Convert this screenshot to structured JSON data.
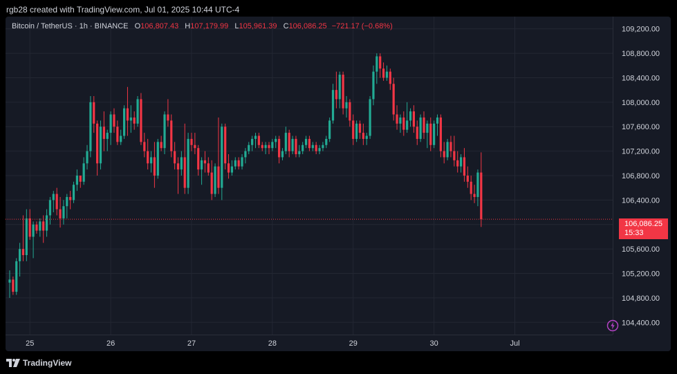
{
  "caption": "rgb28 created with TradingView.com, Jul 01, 2025 10:44 UTC-4",
  "legend": {
    "symbol": "Bitcoin / TetherUS · 1h · BINANCE",
    "o_label": "O",
    "open": "106,807.43",
    "h_label": "H",
    "high": "107,179.99",
    "l_label": "L",
    "low": "105,961.39",
    "c_label": "C",
    "close": "106,086.25",
    "change": "−721.17 (−0.68%)"
  },
  "price_tag": {
    "price": "106,086.25",
    "countdown": "15:33"
  },
  "footer": {
    "brand": "TradingView"
  },
  "icons": {
    "alert": "bolt-icon",
    "logo": "tradingview-logo-icon"
  },
  "colors": {
    "up": "#22ab94",
    "down": "#f23645",
    "background": "#161a25",
    "grid": "#232733",
    "text": "#d1d4dc"
  },
  "chart_data": {
    "type": "candlestick",
    "symbol": "BTCUSDT",
    "interval": "1h",
    "ylim": [
      104200,
      109400
    ],
    "y_ticks": [
      "104,400.00",
      "104,800.00",
      "105,200.00",
      "105,600.00",
      "106,000.00",
      "106,400.00",
      "106,800.00",
      "107,200.00",
      "107,600.00",
      "108,000.00",
      "108,400.00",
      "108,800.00",
      "109,200.00"
    ],
    "y_tick_values": [
      104400,
      104800,
      105200,
      105600,
      106000,
      106400,
      106800,
      107200,
      107600,
      108000,
      108400,
      108800,
      109200
    ],
    "x_ticks": [
      "25",
      "26",
      "27",
      "28",
      "29",
      "30",
      "Jul"
    ],
    "x_tick_hours": [
      6,
      30,
      54,
      78,
      102,
      126,
      150
    ],
    "last_price": 106086.25,
    "candles": [
      [
        105050,
        105250,
        104800,
        105100
      ],
      [
        105100,
        105150,
        104850,
        104900
      ],
      [
        104900,
        105450,
        104850,
        105400
      ],
      [
        105400,
        105700,
        105150,
        105600
      ],
      [
        105600,
        106150,
        105400,
        105500
      ],
      [
        105500,
        106250,
        105400,
        106100
      ],
      [
        106100,
        106250,
        105750,
        105800
      ],
      [
        105800,
        106050,
        105450,
        106000
      ],
      [
        106000,
        106050,
        105850,
        105900
      ],
      [
        105900,
        106100,
        105800,
        106050
      ],
      [
        106050,
        106150,
        105700,
        105900
      ],
      [
        105900,
        106250,
        105800,
        106150
      ],
      [
        106150,
        106450,
        106000,
        106400
      ],
      [
        106400,
        106550,
        106200,
        106500
      ],
      [
        106500,
        106600,
        106150,
        106250
      ],
      [
        106250,
        106450,
        105950,
        106100
      ],
      [
        106100,
        106400,
        106000,
        106300
      ],
      [
        106300,
        106500,
        106100,
        106450
      ],
      [
        106450,
        106550,
        106250,
        106400
      ],
      [
        106400,
        106700,
        106350,
        106650
      ],
      [
        106650,
        106900,
        106550,
        106800
      ],
      [
        106800,
        106800,
        106600,
        106700
      ],
      [
        106700,
        107100,
        106650,
        107000
      ],
      [
        107000,
        107300,
        106900,
        107200
      ],
      [
        107200,
        108100,
        107100,
        108000
      ],
      [
        108000,
        108100,
        107500,
        107650
      ],
      [
        107650,
        107700,
        106800,
        107000
      ],
      [
        107000,
        107700,
        106900,
        107600
      ],
      [
        107600,
        107850,
        107200,
        107400
      ],
      [
        107400,
        107550,
        107200,
        107500
      ],
      [
        107500,
        107850,
        107300,
        107800
      ],
      [
        107800,
        107900,
        107500,
        107600
      ],
      [
        107600,
        107700,
        107300,
        107350
      ],
      [
        107350,
        107550,
        107300,
        107450
      ],
      [
        107450,
        107950,
        107400,
        107900
      ],
      [
        107900,
        108250,
        107450,
        107700
      ],
      [
        107700,
        107950,
        107500,
        107750
      ],
      [
        107750,
        107850,
        107550,
        107650
      ],
      [
        107650,
        108100,
        107600,
        108050
      ],
      [
        108050,
        108150,
        107300,
        107350
      ],
      [
        107350,
        107500,
        107100,
        107200
      ],
      [
        107200,
        107400,
        106900,
        107000
      ],
      [
        107000,
        107200,
        106850,
        107100
      ],
      [
        107100,
        107350,
        106600,
        106800
      ],
      [
        106800,
        107400,
        106750,
        107350
      ],
      [
        107350,
        107450,
        107200,
        107250
      ],
      [
        107250,
        107850,
        107150,
        107800
      ],
      [
        107800,
        108050,
        107600,
        107700
      ],
      [
        107700,
        107800,
        107100,
        107200
      ],
      [
        107200,
        107350,
        106900,
        107000
      ],
      [
        107000,
        107100,
        106500,
        106900
      ],
      [
        106900,
        107200,
        106800,
        107100
      ],
      [
        107100,
        107650,
        106500,
        106600
      ],
      [
        106600,
        107500,
        106500,
        107400
      ],
      [
        107400,
        107500,
        107200,
        107300
      ],
      [
        107300,
        107500,
        107150,
        107250
      ],
      [
        107250,
        107300,
        106800,
        106900
      ],
      [
        106900,
        107100,
        106650,
        107050
      ],
      [
        107050,
        107200,
        106850,
        107000
      ],
      [
        107000,
        107100,
        106800,
        106850
      ],
      [
        106850,
        107050,
        106400,
        106500
      ],
      [
        106500,
        107000,
        106450,
        106950
      ],
      [
        106950,
        107750,
        106500,
        106600
      ],
      [
        106600,
        107650,
        106400,
        107600
      ],
      [
        107600,
        107650,
        106900,
        107000
      ],
      [
        107000,
        107150,
        106750,
        106850
      ],
      [
        106850,
        107050,
        106800,
        106950
      ],
      [
        106950,
        107100,
        106900,
        107050
      ],
      [
        107050,
        107100,
        106900,
        106950
      ],
      [
        106950,
        107150,
        106900,
        107100
      ],
      [
        107100,
        107250,
        107000,
        107200
      ],
      [
        107200,
        107350,
        107150,
        107300
      ],
      [
        107300,
        107450,
        107200,
        107400
      ],
      [
        107400,
        107500,
        107250,
        107450
      ],
      [
        107450,
        107500,
        107250,
        107300
      ],
      [
        107300,
        107350,
        107200,
        107250
      ],
      [
        107250,
        107350,
        107150,
        107300
      ],
      [
        107300,
        107350,
        107150,
        107250
      ],
      [
        107250,
        107400,
        107200,
        107350
      ],
      [
        107350,
        107450,
        107250,
        107400
      ],
      [
        107400,
        107450,
        107000,
        107100
      ],
      [
        107100,
        107250,
        107050,
        107200
      ],
      [
        107200,
        107600,
        107150,
        107500
      ],
      [
        107500,
        107550,
        107100,
        107200
      ],
      [
        107200,
        107450,
        107150,
        107400
      ],
      [
        107400,
        107450,
        107100,
        107150
      ],
      [
        107150,
        107300,
        107100,
        107200
      ],
      [
        107200,
        107350,
        107150,
        107300
      ],
      [
        107300,
        107450,
        107250,
        107400
      ],
      [
        107400,
        107450,
        107200,
        107250
      ],
      [
        107250,
        107350,
        107200,
        107300
      ],
      [
        107300,
        107350,
        107150,
        107200
      ],
      [
        107200,
        107300,
        107150,
        107250
      ],
      [
        107250,
        107350,
        107200,
        107300
      ],
      [
        107300,
        107450,
        107250,
        107400
      ],
      [
        107400,
        107750,
        107350,
        107700
      ],
      [
        107700,
        108300,
        107650,
        108200
      ],
      [
        108200,
        108500,
        107900,
        108050
      ],
      [
        108050,
        108500,
        107900,
        108450
      ],
      [
        108450,
        108500,
        107800,
        107900
      ],
      [
        107900,
        108100,
        107750,
        108000
      ],
      [
        108000,
        108050,
        107600,
        107700
      ],
      [
        107700,
        107800,
        107300,
        107400
      ],
      [
        107400,
        107700,
        107350,
        107650
      ],
      [
        107650,
        107700,
        107400,
        107500
      ],
      [
        107500,
        107650,
        107300,
        107400
      ],
      [
        107400,
        107500,
        107300,
        107450
      ],
      [
        107450,
        108100,
        107400,
        108050
      ],
      [
        108050,
        108600,
        107950,
        108500
      ],
      [
        108500,
        108800,
        108300,
        108750
      ],
      [
        108750,
        108800,
        108400,
        108550
      ],
      [
        108550,
        108650,
        108350,
        108400
      ],
      [
        108400,
        108600,
        108350,
        108500
      ],
      [
        108500,
        108550,
        108200,
        108300
      ],
      [
        108300,
        108400,
        107700,
        107800
      ],
      [
        107800,
        107950,
        107550,
        107650
      ],
      [
        107650,
        107800,
        107500,
        107750
      ],
      [
        107750,
        107850,
        107450,
        107550
      ],
      [
        107550,
        108000,
        107500,
        107700
      ],
      [
        107700,
        107900,
        107600,
        107850
      ],
      [
        107850,
        107950,
        107500,
        107600
      ],
      [
        107600,
        107700,
        107300,
        107400
      ],
      [
        107400,
        107800,
        107350,
        107750
      ],
      [
        107750,
        107850,
        107400,
        107500
      ],
      [
        107500,
        107700,
        107250,
        107650
      ],
      [
        107650,
        107750,
        107200,
        107300
      ],
      [
        107300,
        107700,
        107250,
        107650
      ],
      [
        107650,
        107800,
        107450,
        107750
      ],
      [
        107750,
        107800,
        107100,
        107200
      ],
      [
        107200,
        107350,
        107000,
        107100
      ],
      [
        107100,
        107400,
        107050,
        107350
      ],
      [
        107350,
        107450,
        107100,
        107200
      ],
      [
        107200,
        107450,
        106950,
        107050
      ],
      [
        107050,
        107200,
        106850,
        106950
      ],
      [
        106950,
        107150,
        106850,
        107100
      ],
      [
        107100,
        107250,
        106700,
        106800
      ],
      [
        106800,
        106950,
        106600,
        106700
      ],
      [
        106700,
        106800,
        106400,
        106500
      ],
      [
        106500,
        106650,
        106350,
        106450
      ],
      [
        106450,
        106900,
        106300,
        106850
      ],
      [
        106850,
        107180,
        105960,
        106086
      ]
    ]
  }
}
